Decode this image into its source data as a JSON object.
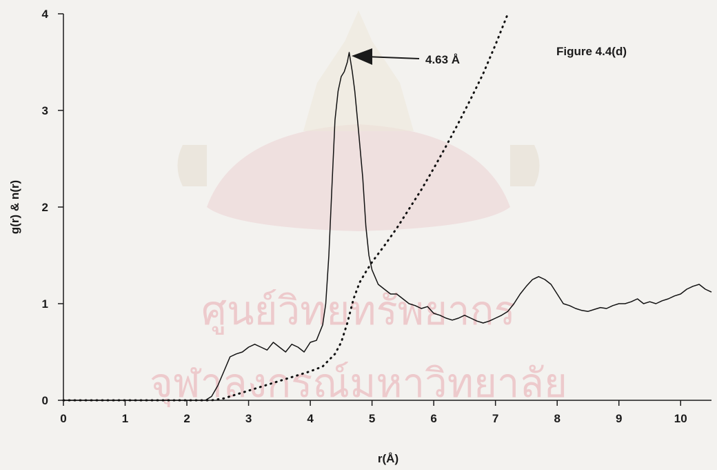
{
  "figure_label": "Figure 4.4(d)",
  "watermark": {
    "line1": "ศูนย์วิทยทรัพยากร",
    "line2": "จุฬาลงกรณ์มหาวิทยาลัย"
  },
  "chart_data": {
    "type": "line",
    "xlabel": "r(Å)",
    "ylabel": "g(r) & n(r)",
    "xlim": [
      0,
      10.5
    ],
    "ylim": [
      0,
      4
    ],
    "x_ticks": [
      "0",
      "1",
      "2",
      "3",
      "4",
      "5",
      "6",
      "7",
      "8",
      "9",
      "10"
    ],
    "y_ticks": [
      "0",
      "1",
      "2",
      "3",
      "4"
    ],
    "grid": false,
    "annotations": [
      {
        "text": "4.63 Å",
        "x": 4.63,
        "y": 3.6,
        "style": "arrow"
      }
    ],
    "series": [
      {
        "style": "solid",
        "x": [
          0.0,
          2.3,
          2.4,
          2.5,
          2.6,
          2.7,
          2.8,
          2.9,
          3.0,
          3.1,
          3.2,
          3.3,
          3.4,
          3.5,
          3.6,
          3.7,
          3.8,
          3.9,
          4.0,
          4.1,
          4.15,
          4.2,
          4.25,
          4.3,
          4.35,
          4.4,
          4.45,
          4.5,
          4.55,
          4.6,
          4.63,
          4.68,
          4.72,
          4.78,
          4.85,
          4.9,
          4.95,
          5.0,
          5.1,
          5.2,
          5.3,
          5.4,
          5.5,
          5.6,
          5.7,
          5.8,
          5.9,
          6.0,
          6.1,
          6.2,
          6.3,
          6.4,
          6.5,
          6.6,
          6.7,
          6.8,
          6.9,
          7.0,
          7.1,
          7.2,
          7.3,
          7.4,
          7.5,
          7.6,
          7.7,
          7.8,
          7.9,
          8.0,
          8.1,
          8.2,
          8.3,
          8.4,
          8.5,
          8.6,
          8.7,
          8.8,
          8.9,
          9.0,
          9.1,
          9.2,
          9.3,
          9.4,
          9.5,
          9.6,
          9.7,
          9.8,
          9.9,
          10.0,
          10.1,
          10.2,
          10.3,
          10.4,
          10.5
        ],
        "y": [
          0.0,
          0.0,
          0.04,
          0.15,
          0.3,
          0.45,
          0.48,
          0.5,
          0.55,
          0.58,
          0.55,
          0.52,
          0.6,
          0.55,
          0.5,
          0.58,
          0.55,
          0.5,
          0.6,
          0.62,
          0.7,
          0.78,
          1.0,
          1.5,
          2.2,
          2.9,
          3.2,
          3.35,
          3.4,
          3.5,
          3.6,
          3.4,
          3.2,
          2.8,
          2.3,
          1.8,
          1.5,
          1.35,
          1.2,
          1.15,
          1.1,
          1.1,
          1.05,
          1.0,
          0.98,
          0.95,
          0.97,
          0.9,
          0.88,
          0.85,
          0.83,
          0.85,
          0.88,
          0.85,
          0.82,
          0.8,
          0.82,
          0.85,
          0.88,
          0.92,
          1.0,
          1.1,
          1.18,
          1.25,
          1.28,
          1.25,
          1.2,
          1.1,
          1.0,
          0.98,
          0.95,
          0.93,
          0.92,
          0.94,
          0.96,
          0.95,
          0.98,
          1.0,
          1.0,
          1.02,
          1.05,
          1.0,
          1.02,
          1.0,
          1.03,
          1.05,
          1.08,
          1.1,
          1.15,
          1.18,
          1.2,
          1.15,
          1.12
        ]
      },
      {
        "style": "dotted",
        "x": [
          0.0,
          2.4,
          2.6,
          2.8,
          3.0,
          3.2,
          3.4,
          3.6,
          3.8,
          4.0,
          4.2,
          4.4,
          4.5,
          4.6,
          4.7,
          4.8,
          4.9,
          5.0,
          5.2,
          5.4,
          5.6,
          5.8,
          6.0,
          6.2,
          6.4,
          6.6,
          6.8,
          7.0,
          7.2
        ],
        "y": [
          0.0,
          0.0,
          0.02,
          0.06,
          0.1,
          0.14,
          0.18,
          0.22,
          0.26,
          0.3,
          0.35,
          0.48,
          0.6,
          0.8,
          1.05,
          1.22,
          1.33,
          1.43,
          1.6,
          1.78,
          1.98,
          2.18,
          2.4,
          2.63,
          2.87,
          3.12,
          3.38,
          3.68,
          4.0
        ]
      }
    ]
  }
}
